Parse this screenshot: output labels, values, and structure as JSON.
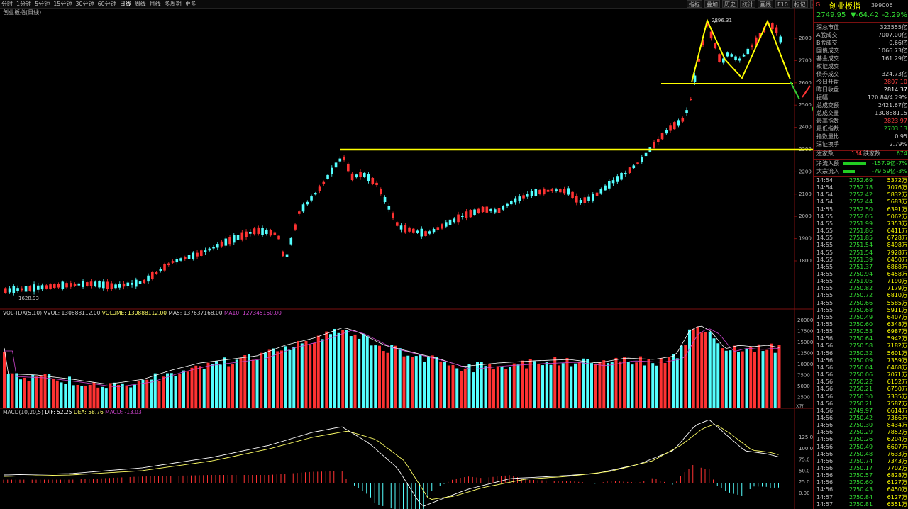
{
  "toolbar": {
    "periods": [
      "分时",
      "1分钟",
      "5分钟",
      "15分钟",
      "30分钟",
      "60分钟",
      "日线",
      "周线",
      "月线",
      "多周期",
      "更多"
    ],
    "active_period": "日线",
    "right_buttons": [
      "指标",
      "叠加",
      "历史",
      "统计",
      "画线",
      "F10",
      "标记",
      "",
      "",
      ""
    ]
  },
  "chart_title": "创业板指(日线)",
  "price_axis": [
    "2800",
    "2700",
    "2600",
    "2500",
    "2400",
    "2300",
    "2200",
    "2100",
    "2000",
    "1900",
    "1800"
  ],
  "high_label": "2896.31",
  "low_label": "1628.93",
  "volume_indicator": {
    "name": "VOL-TDX(5,10)",
    "vvol": "VVOL: 130888112.00",
    "volume": "VOLUME: 130888112.00",
    "mas": "MA5: 137637168.00",
    "ma10": "MA10: 127345160.00",
    "axis": [
      "20000",
      "17500",
      "15000",
      "12500",
      "10000",
      "7500",
      "5000",
      "2500"
    ],
    "unit": "X万"
  },
  "macd_indicator": {
    "name": "MACD(10,20,5)",
    "dif": "DIF: 52.25",
    "dea": "DEA: 58.76",
    "macd": "MACD: -13.03",
    "axis": [
      "125.0",
      "100.0",
      "75.0",
      "50.0",
      "25.0",
      "0.00"
    ]
  },
  "colors": {
    "up": "#ff3232",
    "down": "#54ffff",
    "annotation": "#ffff00",
    "green_arrow": "#33cc33",
    "red_arrow": "#ff3333"
  },
  "quote": {
    "code_prefix": "G",
    "name": "创业板指",
    "code": "399006",
    "price": "2749.95",
    "change": "▼-64.42",
    "change_pct": "-2.29%"
  },
  "stats": [
    {
      "label": "深总市值",
      "value": "323555亿",
      "color": "#cccccc"
    },
    {
      "label": "A股成交",
      "value": "7007.00亿",
      "color": "#cccccc"
    },
    {
      "label": "B股成交",
      "value": "0.66亿",
      "color": "#cccccc"
    },
    {
      "label": "国债成交",
      "value": "1066.73亿",
      "color": "#cccccc"
    },
    {
      "label": "基金成交",
      "value": "161.29亿",
      "color": "#cccccc"
    },
    {
      "label": "权证成交",
      "value": "",
      "color": "#cccccc"
    },
    {
      "label": "债券成交",
      "value": "324.73亿",
      "color": "#cccccc"
    },
    {
      "label": "今日开盘",
      "value": "2807.10",
      "color": "#ff4040"
    },
    {
      "label": "昨日收盘",
      "value": "2814.37",
      "color": "#ffffff"
    },
    {
      "label": "振幅",
      "value": "120.84/4.29%",
      "color": "#cccccc"
    },
    {
      "label": "总成交额",
      "value": "2421.67亿",
      "color": "#cccccc"
    },
    {
      "label": "总成交量",
      "value": "130888115",
      "color": "#cccccc"
    },
    {
      "label": "最高指数",
      "value": "2823.97",
      "color": "#ff4040"
    },
    {
      "label": "最低指数",
      "value": "2703.13",
      "color": "#33dd33"
    },
    {
      "label": "指数量比",
      "value": "0.95",
      "color": "#cccccc"
    },
    {
      "label": "深证换手",
      "value": "2.79%",
      "color": "#cccccc"
    }
  ],
  "breadth": {
    "up_label": "涨家数",
    "up_value": "154",
    "down_label": "跌家数",
    "down_value": "674"
  },
  "flows": [
    {
      "label": "净流入额",
      "value": "-157.9亿",
      "pct": "-7%"
    },
    {
      "label": "大宗流入",
      "value": "-79.59亿",
      "pct": "-3%"
    }
  ],
  "ticks": [
    [
      "14:54",
      "2752.69",
      "5372万"
    ],
    [
      "14:54",
      "2752.78",
      "7076万"
    ],
    [
      "14:54",
      "2752.42",
      "5832万"
    ],
    [
      "14:54",
      "2752.44",
      "5683万"
    ],
    [
      "14:55",
      "2752.50",
      "6391万"
    ],
    [
      "14:55",
      "2752.05",
      "5062万"
    ],
    [
      "14:55",
      "2751.99",
      "7353万"
    ],
    [
      "14:55",
      "2751.86",
      "6411万"
    ],
    [
      "14:55",
      "2751.85",
      "6728万"
    ],
    [
      "14:55",
      "2751.54",
      "8498万"
    ],
    [
      "14:55",
      "2751.54",
      "7928万"
    ],
    [
      "14:55",
      "2751.39",
      "6450万"
    ],
    [
      "14:55",
      "2751.37",
      "6868万"
    ],
    [
      "14:55",
      "2750.94",
      "6458万"
    ],
    [
      "14:55",
      "2751.05",
      "7190万"
    ],
    [
      "14:55",
      "2750.82",
      "7179万"
    ],
    [
      "14:55",
      "2750.72",
      "6810万"
    ],
    [
      "14:55",
      "2750.66",
      "5585万"
    ],
    [
      "14:55",
      "2750.68",
      "5911万"
    ],
    [
      "14:55",
      "2750.49",
      "6407万"
    ],
    [
      "14:55",
      "2750.60",
      "6348万"
    ],
    [
      "14:55",
      "2750.53",
      "6987万"
    ],
    [
      "14:56",
      "2750.64",
      "5942万"
    ],
    [
      "14:56",
      "2750.58",
      "7182万"
    ],
    [
      "14:56",
      "2750.32",
      "5601万"
    ],
    [
      "14:56",
      "2750.09",
      "7359万"
    ],
    [
      "14:56",
      "2750.04",
      "6468万"
    ],
    [
      "14:56",
      "2750.06",
      "7071万"
    ],
    [
      "14:56",
      "2750.22",
      "6152万"
    ],
    [
      "14:56",
      "2750.21",
      "6750万"
    ],
    [
      "14:56",
      "2750.30",
      "7335万"
    ],
    [
      "14:56",
      "2750.21",
      "7587万"
    ],
    [
      "14:56",
      "2749.97",
      "6614万"
    ],
    [
      "14:56",
      "2750.42",
      "7366万"
    ],
    [
      "14:56",
      "2750.30",
      "8434万"
    ],
    [
      "14:56",
      "2750.29",
      "7852万"
    ],
    [
      "14:56",
      "2750.26",
      "6204万"
    ],
    [
      "14:56",
      "2750.49",
      "6607万"
    ],
    [
      "14:56",
      "2750.48",
      "7633万"
    ],
    [
      "14:56",
      "2750.74",
      "7343万"
    ],
    [
      "14:56",
      "2750.17",
      "7702万"
    ],
    [
      "14:56",
      "2750.57",
      "6828万"
    ],
    [
      "14:56",
      "2750.60",
      "6127万"
    ],
    [
      "14:56",
      "2750.43",
      "6450万"
    ],
    [
      "14:57",
      "2750.84",
      "6127万"
    ],
    [
      "14:57",
      "2750.81",
      "6551万"
    ]
  ]
}
